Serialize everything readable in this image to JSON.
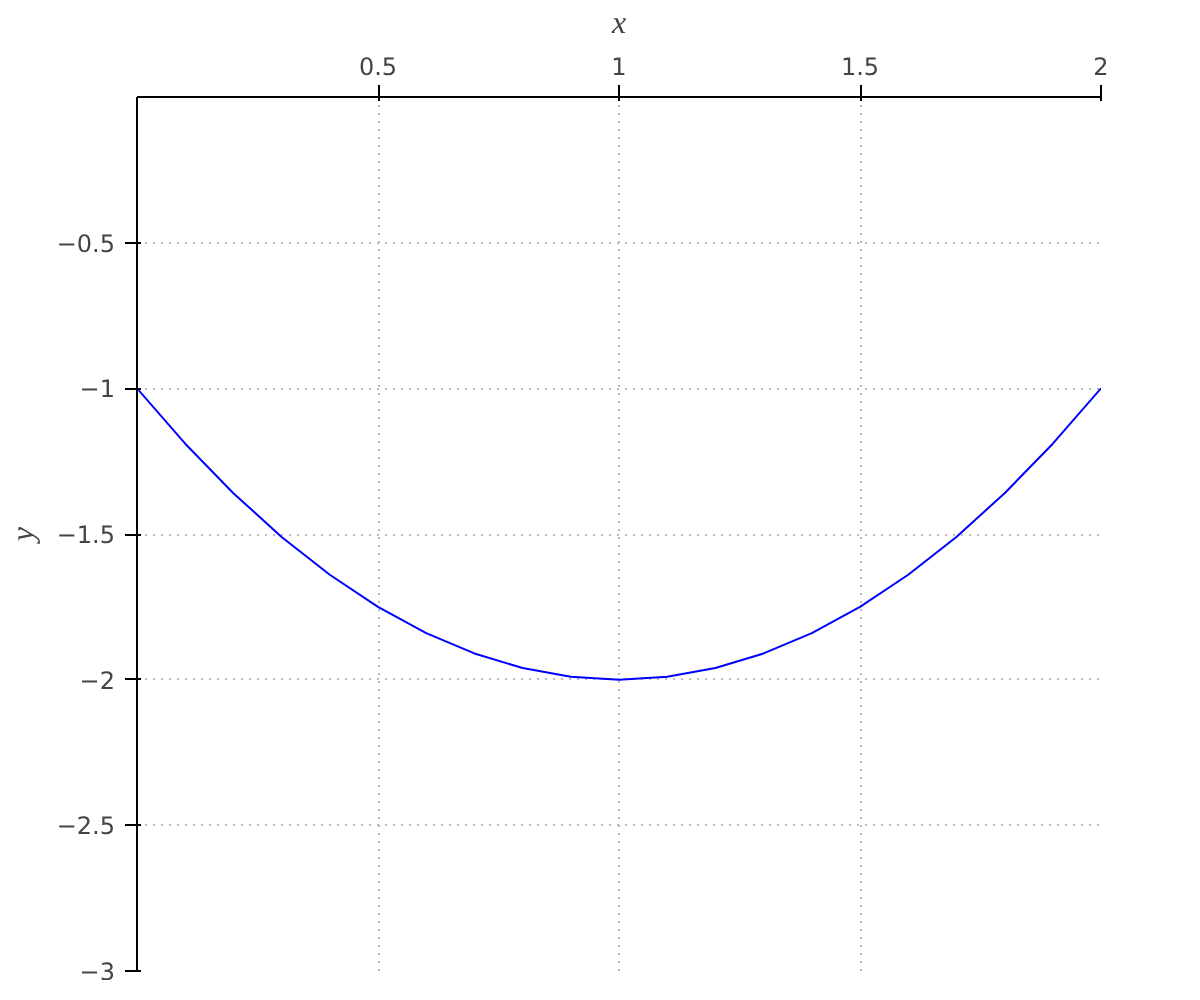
{
  "chart_data": {
    "type": "line",
    "xlabel": "x",
    "ylabel": "y",
    "x": [
      0,
      0.1,
      0.2,
      0.3,
      0.4,
      0.5,
      0.6,
      0.7,
      0.8,
      0.9,
      1,
      1.1,
      1.2,
      1.3,
      1.4,
      1.5,
      1.6,
      1.7,
      1.8,
      1.9,
      2
    ],
    "series": [
      {
        "color": "#0000ff",
        "values": [
          -1,
          -1.19,
          -1.36,
          -1.51,
          -1.64,
          -1.75,
          -1.84,
          -1.91,
          -1.96,
          -1.99,
          -2,
          -1.99,
          -1.96,
          -1.91,
          -1.84,
          -1.75,
          -1.64,
          -1.51,
          -1.36,
          -1.19,
          -1
        ]
      }
    ],
    "xlim": [
      0,
      2
    ],
    "ylim": [
      -3,
      0
    ],
    "xticks": [
      0.5,
      1,
      1.5,
      2
    ],
    "yticks": [
      -0.5,
      -1,
      -1.5,
      -2,
      -2.5,
      -3
    ],
    "grid": true,
    "line_style": "solid",
    "marker": "none"
  }
}
